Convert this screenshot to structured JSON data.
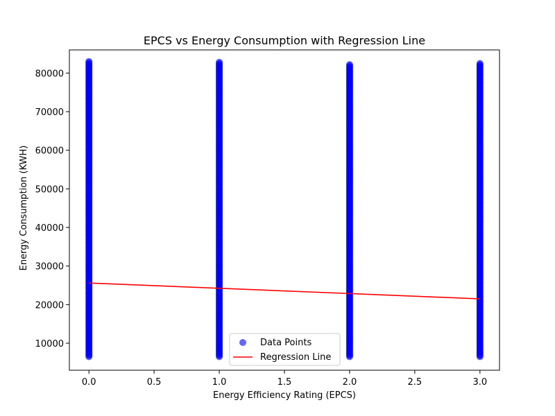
{
  "chart_data": {
    "type": "scatter",
    "title": "EPCS vs Energy Consumption with Regression Line",
    "xlabel": "Energy Efficiency Rating (EPCS)",
    "ylabel": "Energy Consumption (KWH)",
    "xlim": [
      -0.15,
      3.15
    ],
    "ylim": [
      3000,
      86000
    ],
    "x_ticks": [
      0.0,
      0.5,
      1.0,
      1.5,
      2.0,
      2.5,
      3.0
    ],
    "x_tick_labels": [
      "0.0",
      "0.5",
      "1.0",
      "1.5",
      "2.0",
      "2.5",
      "3.0"
    ],
    "y_ticks": [
      10000,
      20000,
      30000,
      40000,
      50000,
      60000,
      70000,
      80000
    ],
    "y_tick_labels": [
      "10000",
      "20000",
      "30000",
      "40000",
      "50000",
      "60000",
      "70000",
      "80000"
    ],
    "grid": false,
    "legend_position": "bottom-center",
    "series": [
      {
        "name": "Data Points",
        "kind": "scatter",
        "color": "#0000ff",
        "groups": [
          {
            "x": 0,
            "y_min": 6500,
            "y_max": 83000
          },
          {
            "x": 1,
            "y_min": 6500,
            "y_max": 82800
          },
          {
            "x": 2,
            "y_min": 6500,
            "y_max": 82200
          },
          {
            "x": 3,
            "y_min": 6500,
            "y_max": 82500
          }
        ]
      },
      {
        "name": "Regression Line",
        "kind": "line",
        "color": "#ff0000",
        "x": [
          0,
          3
        ],
        "y": [
          25600,
          21500
        ]
      }
    ]
  }
}
